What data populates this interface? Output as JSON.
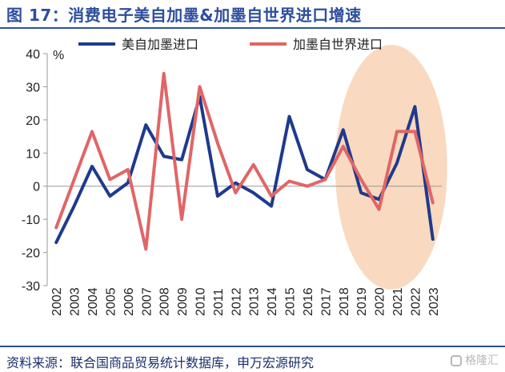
{
  "header": {
    "title": "图 17：消费电子美自加墨&加墨自世界进口增速"
  },
  "footer": {
    "source": "资料来源：联合国商品贸易统计数据库，申万宏源研究",
    "watermark": "格隆汇"
  },
  "chart_data": {
    "type": "line",
    "title": "",
    "xlabel": "",
    "ylabel": "%",
    "ylim": [
      -30,
      40
    ],
    "yticks": [
      40,
      30,
      20,
      10,
      0,
      -10,
      -20,
      -30
    ],
    "grid": false,
    "legend_position": "top",
    "categories": [
      "2002",
      "2003",
      "2004",
      "2005",
      "2006",
      "2007",
      "2008",
      "2009",
      "2010",
      "2011",
      "2012",
      "2013",
      "2014",
      "2015",
      "2016",
      "2017",
      "2018",
      "2019",
      "2020",
      "2021",
      "2022",
      "2023"
    ],
    "series": [
      {
        "name": "美自加墨进口",
        "color": "#1f3a8c",
        "values": [
          -17,
          -6,
          6,
          -3,
          1,
          18.5,
          9,
          8,
          27,
          -3,
          1,
          -2,
          -6,
          21,
          5,
          2,
          17,
          -2,
          -4,
          7,
          24,
          -16
        ]
      },
      {
        "name": "加墨自世界进口",
        "color": "#e06666",
        "values": [
          -12.5,
          2,
          16.5,
          2,
          5,
          -19,
          34,
          -10,
          30,
          13,
          -2,
          6.5,
          -3,
          1.5,
          0,
          2,
          12,
          2,
          -7,
          16.5,
          16.5,
          -5
        ]
      }
    ],
    "highlight": {
      "from": "2018",
      "to": "2023",
      "color": "#f9d9bf",
      "shape": "ellipse"
    }
  }
}
